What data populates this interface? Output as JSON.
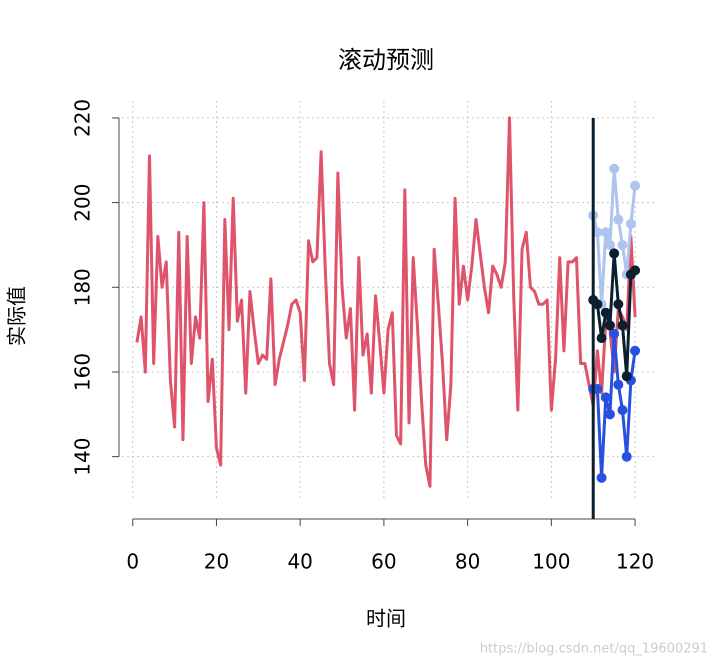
{
  "chart_data": {
    "type": "line",
    "title": "滚动预测",
    "x_label": "时间",
    "y_label": "实际值",
    "watermark": "https://blog.csdn.net/qq_19600291",
    "xlim": [
      -3.76,
      124.76
    ],
    "ylim": [
      130,
      224
    ],
    "xticks": [
      0,
      20,
      40,
      60,
      80,
      100,
      120
    ],
    "yticks": [
      140,
      160,
      180,
      200,
      220
    ],
    "grid": true,
    "vline": 110,
    "vline_color": "#0b1f2e",
    "series": [
      {
        "color": "#df536b",
        "points": false,
        "x": [
          1,
          2,
          3,
          4,
          5,
          6,
          7,
          8,
          9,
          10,
          11,
          12,
          13,
          14,
          15,
          16,
          17,
          18,
          19,
          20,
          21,
          22,
          23,
          24,
          25,
          26,
          27,
          28,
          29,
          30,
          31,
          32,
          33,
          34,
          35,
          36,
          37,
          38,
          39,
          40,
          41,
          42,
          43,
          44,
          45,
          46,
          47,
          48,
          49,
          50,
          51,
          52,
          53,
          54,
          55,
          56,
          57,
          58,
          59,
          60,
          61,
          62,
          63,
          64,
          65,
          66,
          67,
          68,
          69,
          70,
          71,
          72,
          73,
          74,
          75,
          76,
          77,
          78,
          79,
          80,
          81,
          82,
          83,
          84,
          85,
          86,
          87,
          88,
          89,
          90,
          91,
          92,
          93,
          94,
          95,
          96,
          97,
          98,
          99,
          100,
          101,
          102,
          103,
          104,
          105,
          106,
          107,
          108,
          109,
          110,
          111,
          112,
          113,
          114,
          115,
          116,
          117,
          118,
          119,
          120
        ],
        "values": [
          167,
          173,
          160,
          211,
          162,
          192,
          180,
          186,
          158,
          147,
          193,
          144,
          192,
          162,
          173,
          168,
          200,
          153,
          163,
          142,
          138,
          196,
          170,
          201,
          172,
          177,
          155,
          179,
          170,
          162,
          164,
          163,
          182,
          157,
          163,
          167,
          171,
          176,
          177,
          174,
          158,
          191,
          186,
          187,
          212,
          184,
          162,
          157,
          207,
          180,
          168,
          175,
          151,
          187,
          164,
          169,
          155,
          178,
          167,
          155,
          170,
          174,
          145,
          143,
          203,
          148,
          187,
          171,
          153,
          138,
          133,
          189,
          176,
          162,
          144,
          157,
          201,
          176,
          185,
          177,
          185,
          196,
          188,
          180,
          174,
          185,
          183,
          180,
          186,
          220,
          178,
          151,
          189,
          193,
          180,
          179,
          176,
          176,
          177,
          151,
          163,
          187,
          165,
          186,
          186,
          187,
          162,
          162,
          157,
          152,
          165,
          155,
          172,
          170,
          160,
          175,
          173,
          170,
          192,
          173
        ]
      },
      {
        "color": "#adc3f0",
        "points": true,
        "x": [
          110,
          111,
          112,
          113,
          114,
          115,
          116,
          117,
          118,
          119,
          120
        ],
        "values": [
          197,
          193,
          176,
          193,
          190,
          208,
          196,
          190,
          183,
          195,
          204
        ]
      },
      {
        "color": "#2850e0",
        "points": true,
        "x": [
          110,
          111,
          112,
          113,
          114,
          115,
          116,
          117,
          118,
          119,
          120
        ],
        "values": [
          156,
          156,
          135,
          154,
          150,
          169,
          157,
          151,
          140,
          158,
          165
        ]
      },
      {
        "color": "#0b1f2e",
        "points": true,
        "x": [
          110,
          111,
          112,
          113,
          114,
          115,
          116,
          117,
          118,
          119,
          120
        ],
        "values": [
          177,
          176,
          168,
          174,
          171,
          188,
          176,
          171,
          159,
          183,
          184
        ]
      }
    ]
  }
}
